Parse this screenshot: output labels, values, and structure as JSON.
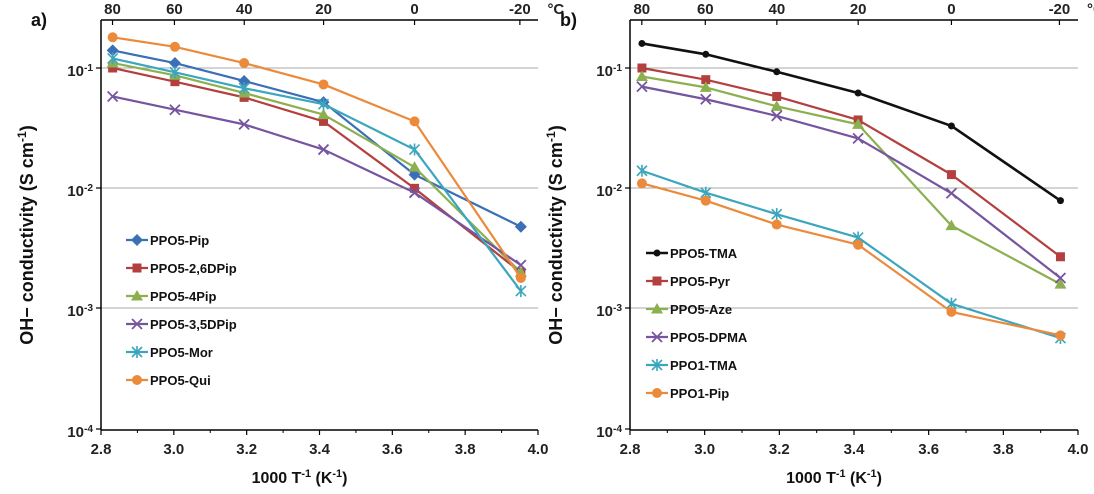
{
  "chart_data": [
    {
      "type": "line",
      "panel_label": "a)",
      "xlabel": "1000 T",
      "xlabel_sup": "-1",
      "xlabel_unit": " (K",
      "xlabel_unit_sup": "-1",
      "xlabel_end": ")",
      "ylabel": "OH− conductivity  (S cm",
      "ylabel_sup": "-1",
      "ylabel_end": ")",
      "x_ticks": [
        "2.8",
        "3.0",
        "3.2",
        "3.4",
        "3.6",
        "3.8",
        "4.0"
      ],
      "top_ticks": [
        "80",
        "60",
        "40",
        "20",
        "0",
        "-20"
      ],
      "top_unit": "°C",
      "y_ticks": [
        "10",
        "10",
        "10",
        "10"
      ],
      "y_tick_exps": [
        "-1",
        "-2",
        "-3",
        "-4"
      ],
      "xlim": [
        2.8,
        4.0
      ],
      "ylim": [
        0.0001,
        0.2
      ],
      "yscale": "log",
      "grid": "horizontal",
      "legend_position": "center-left",
      "series": [
        {
          "name": "PPO5-Pip",
          "color": "#3b6fb6",
          "marker": "diamond",
          "x": [
            2.832,
            3.003,
            3.193,
            3.411,
            3.661,
            3.953
          ],
          "y": [
            0.14,
            0.11,
            0.078,
            0.052,
            0.013,
            0.0048
          ]
        },
        {
          "name": "PPO5-2,6DPip",
          "color": "#b3403e",
          "marker": "square",
          "x": [
            2.832,
            3.003,
            3.193,
            3.411,
            3.661,
            3.953
          ],
          "y": [
            0.1,
            0.077,
            0.057,
            0.036,
            0.01,
            0.002
          ]
        },
        {
          "name": "PPO5-4Pip",
          "color": "#8cb050",
          "marker": "triangle",
          "x": [
            2.832,
            3.003,
            3.193,
            3.411,
            3.661,
            3.953
          ],
          "y": [
            0.11,
            0.087,
            0.062,
            0.041,
            0.015,
            0.002
          ]
        },
        {
          "name": "PPO5-3,5DPip",
          "color": "#7655a0",
          "marker": "x",
          "x": [
            2.832,
            3.003,
            3.193,
            3.411,
            3.661,
            3.953
          ],
          "y": [
            0.058,
            0.045,
            0.034,
            0.021,
            0.0092,
            0.0023
          ]
        },
        {
          "name": "PPO5-Mor",
          "color": "#3ba6bd",
          "marker": "asterisk",
          "x": [
            2.832,
            3.003,
            3.193,
            3.411,
            3.661,
            3.953
          ],
          "y": [
            0.12,
            0.092,
            0.068,
            0.05,
            0.021,
            0.0014
          ]
        },
        {
          "name": "PPO5-Qui",
          "color": "#ec8a3b",
          "marker": "circle",
          "x": [
            2.832,
            3.003,
            3.193,
            3.411,
            3.661,
            3.953
          ],
          "y": [
            0.18,
            0.15,
            0.11,
            0.073,
            0.036,
            0.0018
          ]
        }
      ]
    },
    {
      "type": "line",
      "panel_label": "b)",
      "xlabel": "1000 T",
      "xlabel_sup": "-1",
      "xlabel_unit": " (K",
      "xlabel_unit_sup": "-1",
      "xlabel_end": ")",
      "ylabel": "OH− conductivity  (S cm",
      "ylabel_sup": "-1",
      "ylabel_end": ")",
      "x_ticks": [
        "2.8",
        "3.0",
        "3.2",
        "3.4",
        "3.6",
        "3.8",
        "4.0"
      ],
      "top_ticks": [
        "80",
        "60",
        "40",
        "20",
        "0",
        "-20"
      ],
      "top_unit": "°C",
      "y_ticks": [
        "10",
        "10",
        "10",
        "10"
      ],
      "y_tick_exps": [
        "-1",
        "-2",
        "-3",
        "-4"
      ],
      "xlim": [
        2.8,
        4.0
      ],
      "ylim": [
        0.0001,
        0.2
      ],
      "yscale": "log",
      "grid": "horizontal",
      "legend_position": "bottom-left",
      "series": [
        {
          "name": "PPO5-TMA",
          "color": "#111111",
          "marker": "dot",
          "x": [
            2.832,
            3.003,
            3.193,
            3.411,
            3.661,
            3.953
          ],
          "y": [
            0.16,
            0.13,
            0.093,
            0.062,
            0.033,
            0.0079
          ]
        },
        {
          "name": "PPO5-Pyr",
          "color": "#b3403e",
          "marker": "square",
          "x": [
            2.832,
            3.003,
            3.193,
            3.411,
            3.661,
            3.953
          ],
          "y": [
            0.1,
            0.08,
            0.058,
            0.037,
            0.013,
            0.0027
          ]
        },
        {
          "name": "PPO5-Aze",
          "color": "#8cb050",
          "marker": "triangle",
          "x": [
            2.832,
            3.003,
            3.193,
            3.411,
            3.661,
            3.953
          ],
          "y": [
            0.085,
            0.069,
            0.048,
            0.034,
            0.0049,
            0.0016
          ]
        },
        {
          "name": "PPO5-DPMA",
          "color": "#7655a0",
          "marker": "x",
          "x": [
            2.832,
            3.003,
            3.193,
            3.411,
            3.661,
            3.953
          ],
          "y": [
            0.07,
            0.055,
            0.04,
            0.026,
            0.0091,
            0.0018
          ]
        },
        {
          "name": "PPO1-TMA",
          "color": "#3ba6bd",
          "marker": "asterisk",
          "x": [
            2.832,
            3.003,
            3.193,
            3.411,
            3.661,
            3.953
          ],
          "y": [
            0.014,
            0.0092,
            0.0061,
            0.0039,
            0.0011,
            0.00057
          ]
        },
        {
          "name": "PPO1-Pip",
          "color": "#ec8a3b",
          "marker": "circle",
          "x": [
            2.832,
            3.003,
            3.193,
            3.411,
            3.661,
            3.953
          ],
          "y": [
            0.011,
            0.0079,
            0.005,
            0.0034,
            0.00094,
            0.0006
          ]
        }
      ]
    }
  ]
}
